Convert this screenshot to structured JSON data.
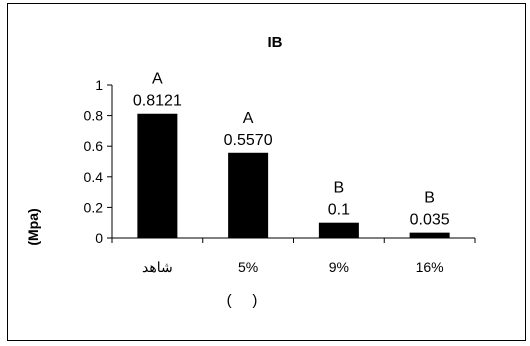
{
  "chart_data": {
    "type": "bar",
    "title": "IB",
    "ylabel": "(Mpa)",
    "xlabel": "(     )",
    "categories": [
      "شاهد",
      "5%",
      "9%",
      "16%"
    ],
    "values": [
      0.8121,
      0.557,
      0.1,
      0.035
    ],
    "value_labels": [
      "0.8121",
      "0.5570",
      "0.1",
      "0.035"
    ],
    "group_labels": [
      "A",
      "A",
      "B",
      "B"
    ],
    "ylim": [
      0,
      1
    ],
    "yticks": [
      "0",
      "0.2",
      "0.4",
      "0.6",
      "0.8",
      "1"
    ],
    "grid": false,
    "bar_color": "#000000"
  }
}
